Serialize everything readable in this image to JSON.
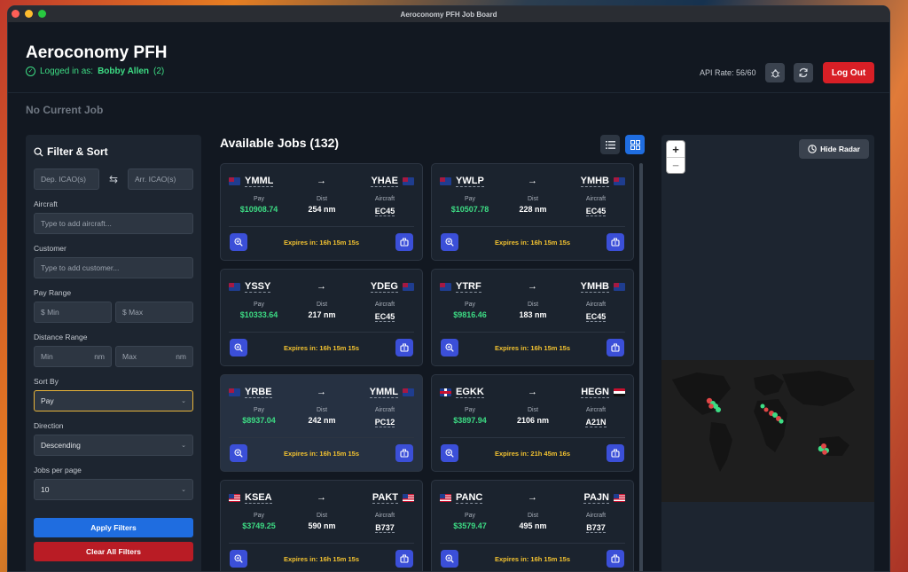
{
  "window": {
    "title": "Aeroconomy PFH Job Board"
  },
  "header": {
    "app_title": "Aeroconomy PFH",
    "logged_prefix": "Logged in as:",
    "user_name": "Bobby Allen",
    "user_suffix": "(2)",
    "api_rate": "API Rate: 56/60",
    "logout_label": "Log Out"
  },
  "current_job": "No Current Job",
  "filters": {
    "title": "Filter & Sort",
    "dep_placeholder": "Dep. ICAO(s)",
    "arr_placeholder": "Arr. ICAO(s)",
    "aircraft_label": "Aircraft",
    "aircraft_placeholder": "Type to add aircraft...",
    "customer_label": "Customer",
    "customer_placeholder": "Type to add customer...",
    "pay_range_label": "Pay Range",
    "pay_min": "$ Min",
    "pay_max": "$ Max",
    "distance_label": "Distance Range",
    "dist_min": "Min",
    "dist_max": "Max",
    "dist_unit": "nm",
    "sort_by_label": "Sort By",
    "sort_by_value": "Pay",
    "direction_label": "Direction",
    "direction_value": "Descending",
    "per_page_label": "Jobs per page",
    "per_page_value": "10",
    "apply_label": "Apply Filters",
    "clear_label": "Clear All Filters"
  },
  "jobs": {
    "title": "Available Jobs (132)",
    "pay_label": "Pay",
    "dist_label": "Dist",
    "aircraft_label": "Aircraft",
    "arrow": "→",
    "expires_prefix": "Expires in:",
    "items": [
      {
        "dep": "YMML",
        "arr": "YHAE",
        "dep_flag": "au",
        "arr_flag": "au",
        "pay": "$10908.74",
        "dist": "254 nm",
        "aircraft": "EC45",
        "expires": "Expires in: 16h 15m 15s"
      },
      {
        "dep": "YWLP",
        "arr": "YMHB",
        "dep_flag": "au",
        "arr_flag": "au",
        "pay": "$10507.78",
        "dist": "228 nm",
        "aircraft": "EC45",
        "expires": "Expires in: 16h 15m 15s"
      },
      {
        "dep": "YSSY",
        "arr": "YDEG",
        "dep_flag": "au",
        "arr_flag": "au",
        "pay": "$10333.64",
        "dist": "217 nm",
        "aircraft": "EC45",
        "expires": "Expires in: 16h 15m 15s"
      },
      {
        "dep": "YTRF",
        "arr": "YMHB",
        "dep_flag": "au",
        "arr_flag": "au",
        "pay": "$9816.46",
        "dist": "183 nm",
        "aircraft": "EC45",
        "expires": "Expires in: 16h 15m 15s"
      },
      {
        "dep": "YRBE",
        "arr": "YMML",
        "dep_flag": "au",
        "arr_flag": "au",
        "pay": "$8937.04",
        "dist": "242 nm",
        "aircraft": "PC12",
        "expires": "Expires in: 16h 15m 15s"
      },
      {
        "dep": "EGKK",
        "arr": "HEGN",
        "dep_flag": "gb",
        "arr_flag": "eg",
        "pay": "$3897.94",
        "dist": "2106 nm",
        "aircraft": "A21N",
        "expires": "Expires in: 21h 45m 16s"
      },
      {
        "dep": "KSEA",
        "arr": "PAKT",
        "dep_flag": "us",
        "arr_flag": "us",
        "pay": "$3749.25",
        "dist": "590 nm",
        "aircraft": "B737",
        "expires": "Expires in: 16h 15m 15s"
      },
      {
        "dep": "PANC",
        "arr": "PAJN",
        "dep_flag": "us",
        "arr_flag": "us",
        "pay": "$3579.47",
        "dist": "495 nm",
        "aircraft": "B737",
        "expires": "Expires in: 16h 15m 15s"
      }
    ]
  },
  "radar": {
    "hide_label": "Hide Radar",
    "zoom_in": "+",
    "zoom_out": "−"
  },
  "icons": {
    "search": "search-icon",
    "swap": "swap-icon",
    "check": "check-circle-icon",
    "bug": "bug-icon",
    "refresh": "refresh-icon",
    "list": "list-view-icon",
    "grid": "grid-view-icon",
    "zoom": "zoom-in-icon",
    "briefcase": "briefcase-icon",
    "radar": "radar-icon"
  },
  "colors": {
    "accent": "#1f6de0",
    "pay_green": "#3ddc84",
    "expire_yellow": "#f2c230",
    "danger": "#d81f26"
  }
}
